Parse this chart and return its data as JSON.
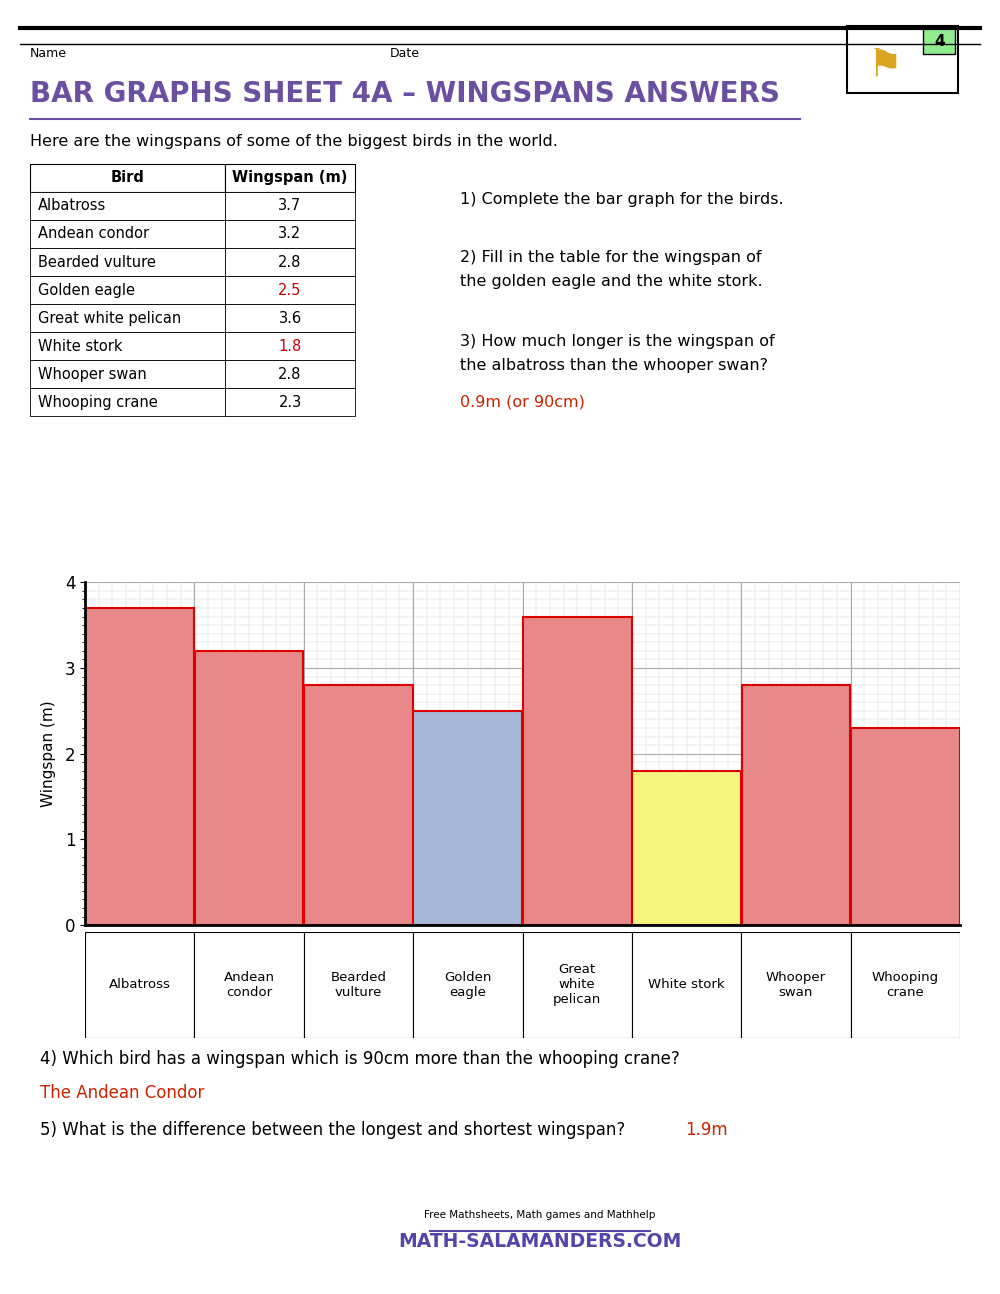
{
  "title": "BAR GRAPHS SHEET 4A – WINGSPANS ANSWERS",
  "title_color": "#6B4FA0",
  "intro_text": "Here are the wingspans of some of the biggest birds in the world.",
  "birds": [
    "Albatross",
    "Andean condor",
    "Bearded vulture",
    "Golden eagle",
    "Great white pelican",
    "White stork",
    "Whooper swan",
    "Whooping crane"
  ],
  "wingspans": [
    3.7,
    3.2,
    2.8,
    2.5,
    3.6,
    1.8,
    2.8,
    2.3
  ],
  "bar_colors": [
    "#E88888",
    "#E88888",
    "#E88888",
    "#A8B8D8",
    "#E88888",
    "#F5F580",
    "#E88888",
    "#E88888"
  ],
  "bar_edge_color": "#DD0000",
  "grid_minor_color": "#CCCCCC",
  "grid_major_color": "#AAAAAA",
  "highlight_color": "#CC0000",
  "highlight_birds": [
    "Golden eagle",
    "White stork"
  ],
  "ylabel": "Wingspan (m)",
  "ylim": [
    0,
    4
  ],
  "yticks": [
    0,
    1,
    2,
    3,
    4
  ],
  "name_label": "Name",
  "date_label": "Date",
  "q1": "1) Complete the bar graph for the birds.",
  "q2_line1": "2) Fill in the table for the wingspan of",
  "q2_line2": "the golden eagle and the white stork.",
  "q3_line1": "3) How much longer is the wingspan of",
  "q3_line2": "the albatross than the whooper swan?",
  "q3_ans": "0.9m (or 90cm)",
  "q4": "4) Which bird has a wingspan which is 90cm more than the whooping crane?",
  "q4_ans": "The Andean Condor",
  "q5": "5) What is the difference between the longest and shortest wingspan?",
  "q5_ans": "1.9m",
  "ans_color": "#CC2200",
  "bg_color": "#FFFFFF",
  "x_labels": [
    "Albatross",
    "Andean\ncondor",
    "Bearded\nvulture",
    "Golden\neagle",
    "Great\nwhite\npelican",
    "White stork",
    "Whooper\nswan",
    "Whooping\ncrane"
  ],
  "footer_small": "Free Mathsheets, Math games and Mathhelp",
  "footer_large": "MATH-SALAMANDERS.COM",
  "footer_color": "#5544AA"
}
